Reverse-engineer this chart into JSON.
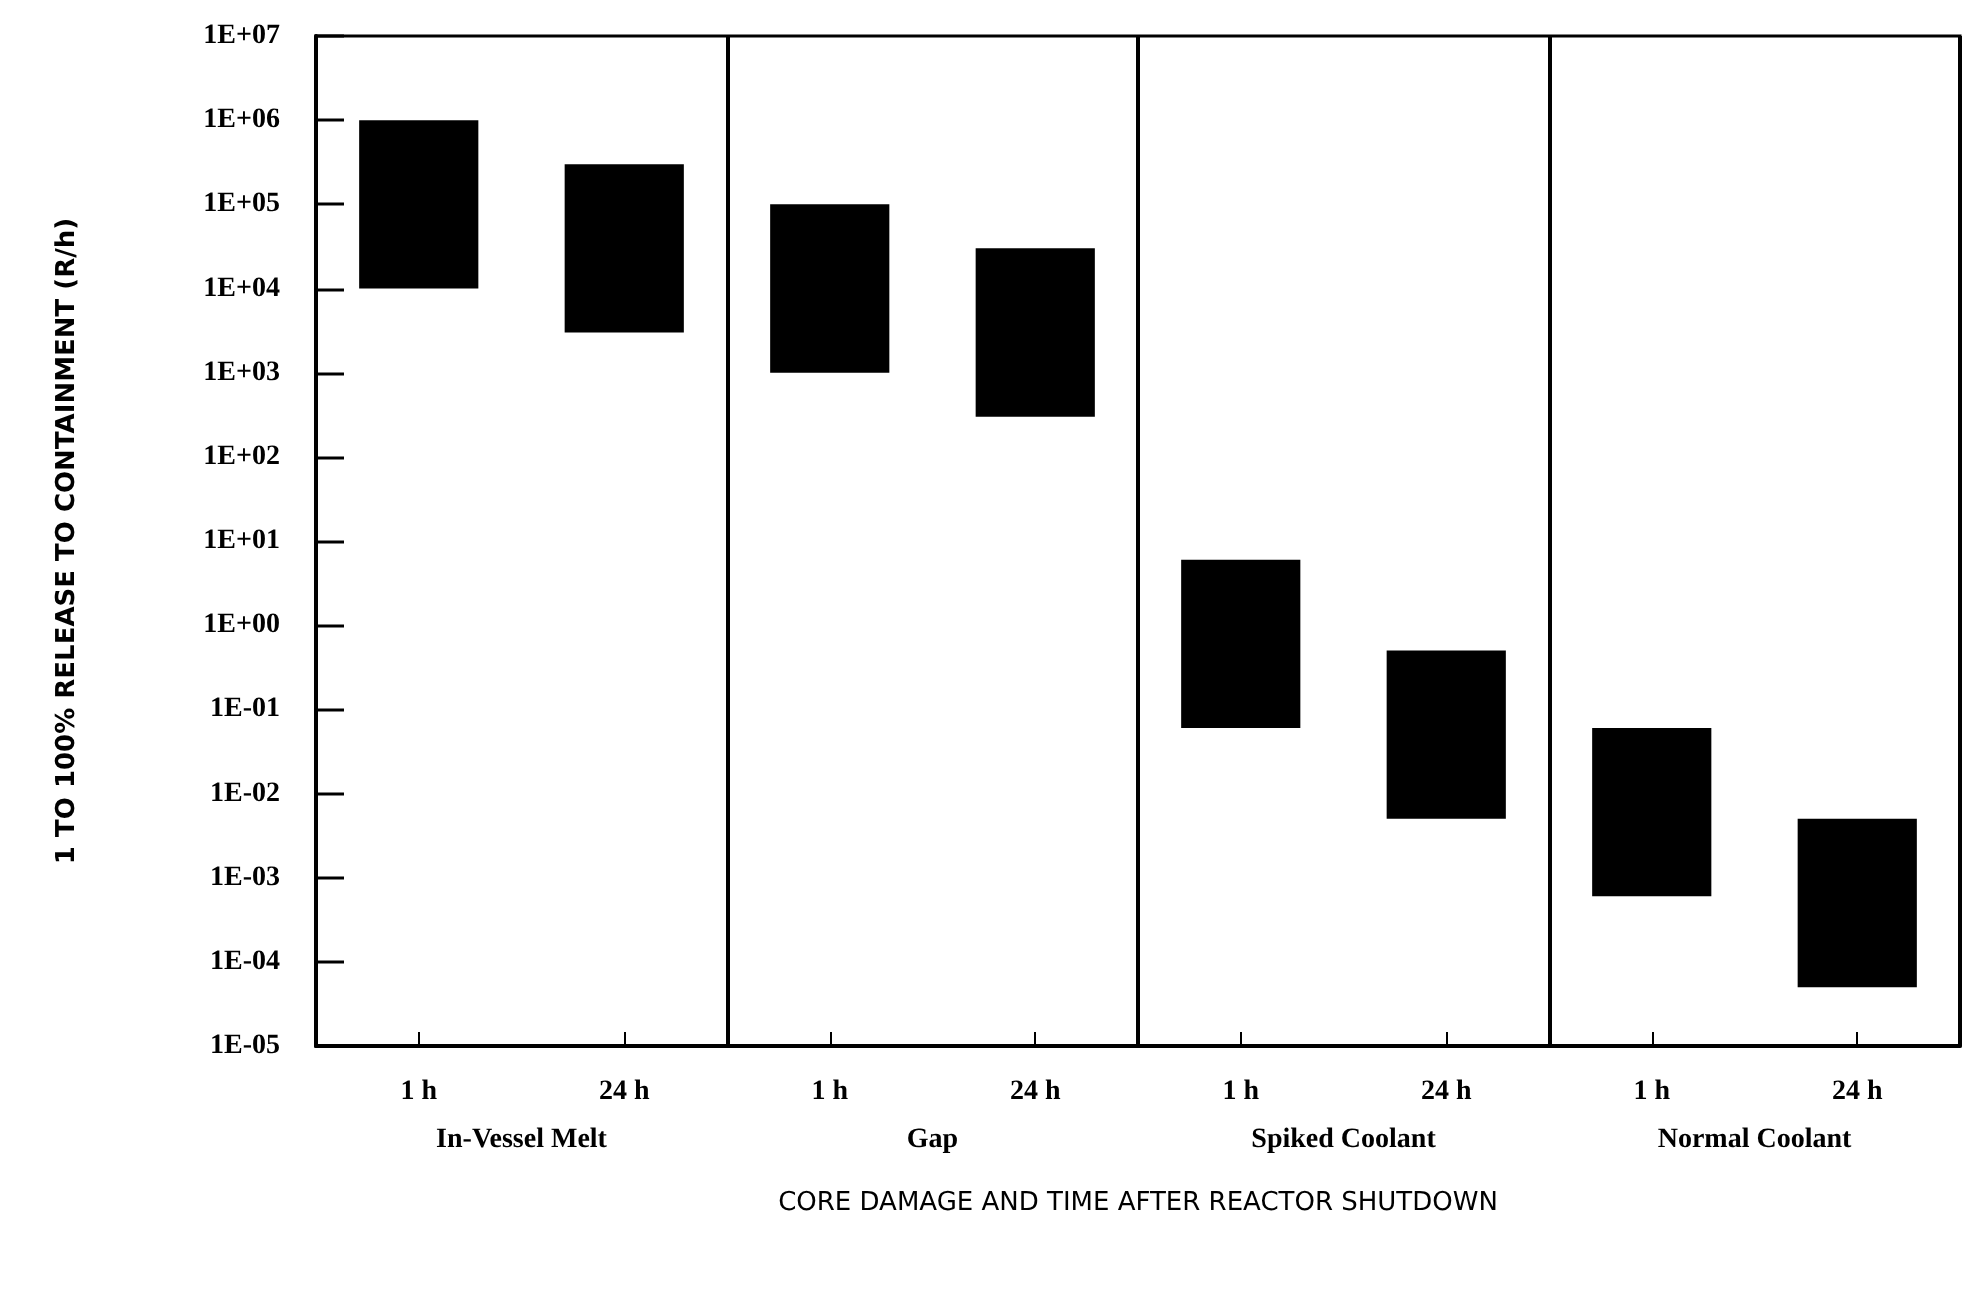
{
  "chart_data": {
    "type": "bar",
    "xlabel": "CORE DAMAGE AND TIME AFTER REACTOR SHUTDOWN",
    "ylabel": "1 TO 100% RELEASE TO CONTAINMENT (R/h)",
    "categories": [
      "1 h",
      "24 h",
      "1 h",
      "24 h",
      "1 h",
      "24 h",
      "1 h",
      "24 h"
    ],
    "base": [
      10000,
      3000,
      1000,
      300,
      0.06,
      0.005,
      0.0006,
      5e-05
    ],
    "values": [
      990000,
      297000,
      99000,
      29700,
      5.94,
      0.495,
      0.0594,
      0.00495
    ],
    "color": "#000000",
    "annotations": [
      "In-Vessel Melt",
      "Gap",
      "Spiked Coolant",
      "Normal Coolant"
    ],
    "log": "y",
    "ylim": [
      1e-05,
      10000000
    ],
    "yticks": [
      {
        "value": 10000000,
        "label": "1E+07"
      },
      {
        "value": 1000000,
        "label": "1E+06"
      },
      {
        "value": 100000,
        "label": "1E+05"
      },
      {
        "value": 10000,
        "label": "1E+04"
      },
      {
        "value": 1000,
        "label": "1E+03"
      },
      {
        "value": 100,
        "label": "1E+02"
      },
      {
        "value": 10,
        "label": "1E+01"
      },
      {
        "value": 1,
        "label": "1E+00"
      },
      {
        "value": 0.1,
        "label": "1E-01"
      },
      {
        "value": 0.01,
        "label": "1E-02"
      },
      {
        "value": 0.001,
        "label": "1E-03"
      },
      {
        "value": 0.0001,
        "label": "1E-04"
      },
      {
        "value": 1e-05,
        "label": "1E-05"
      }
    ],
    "grid": false
  }
}
